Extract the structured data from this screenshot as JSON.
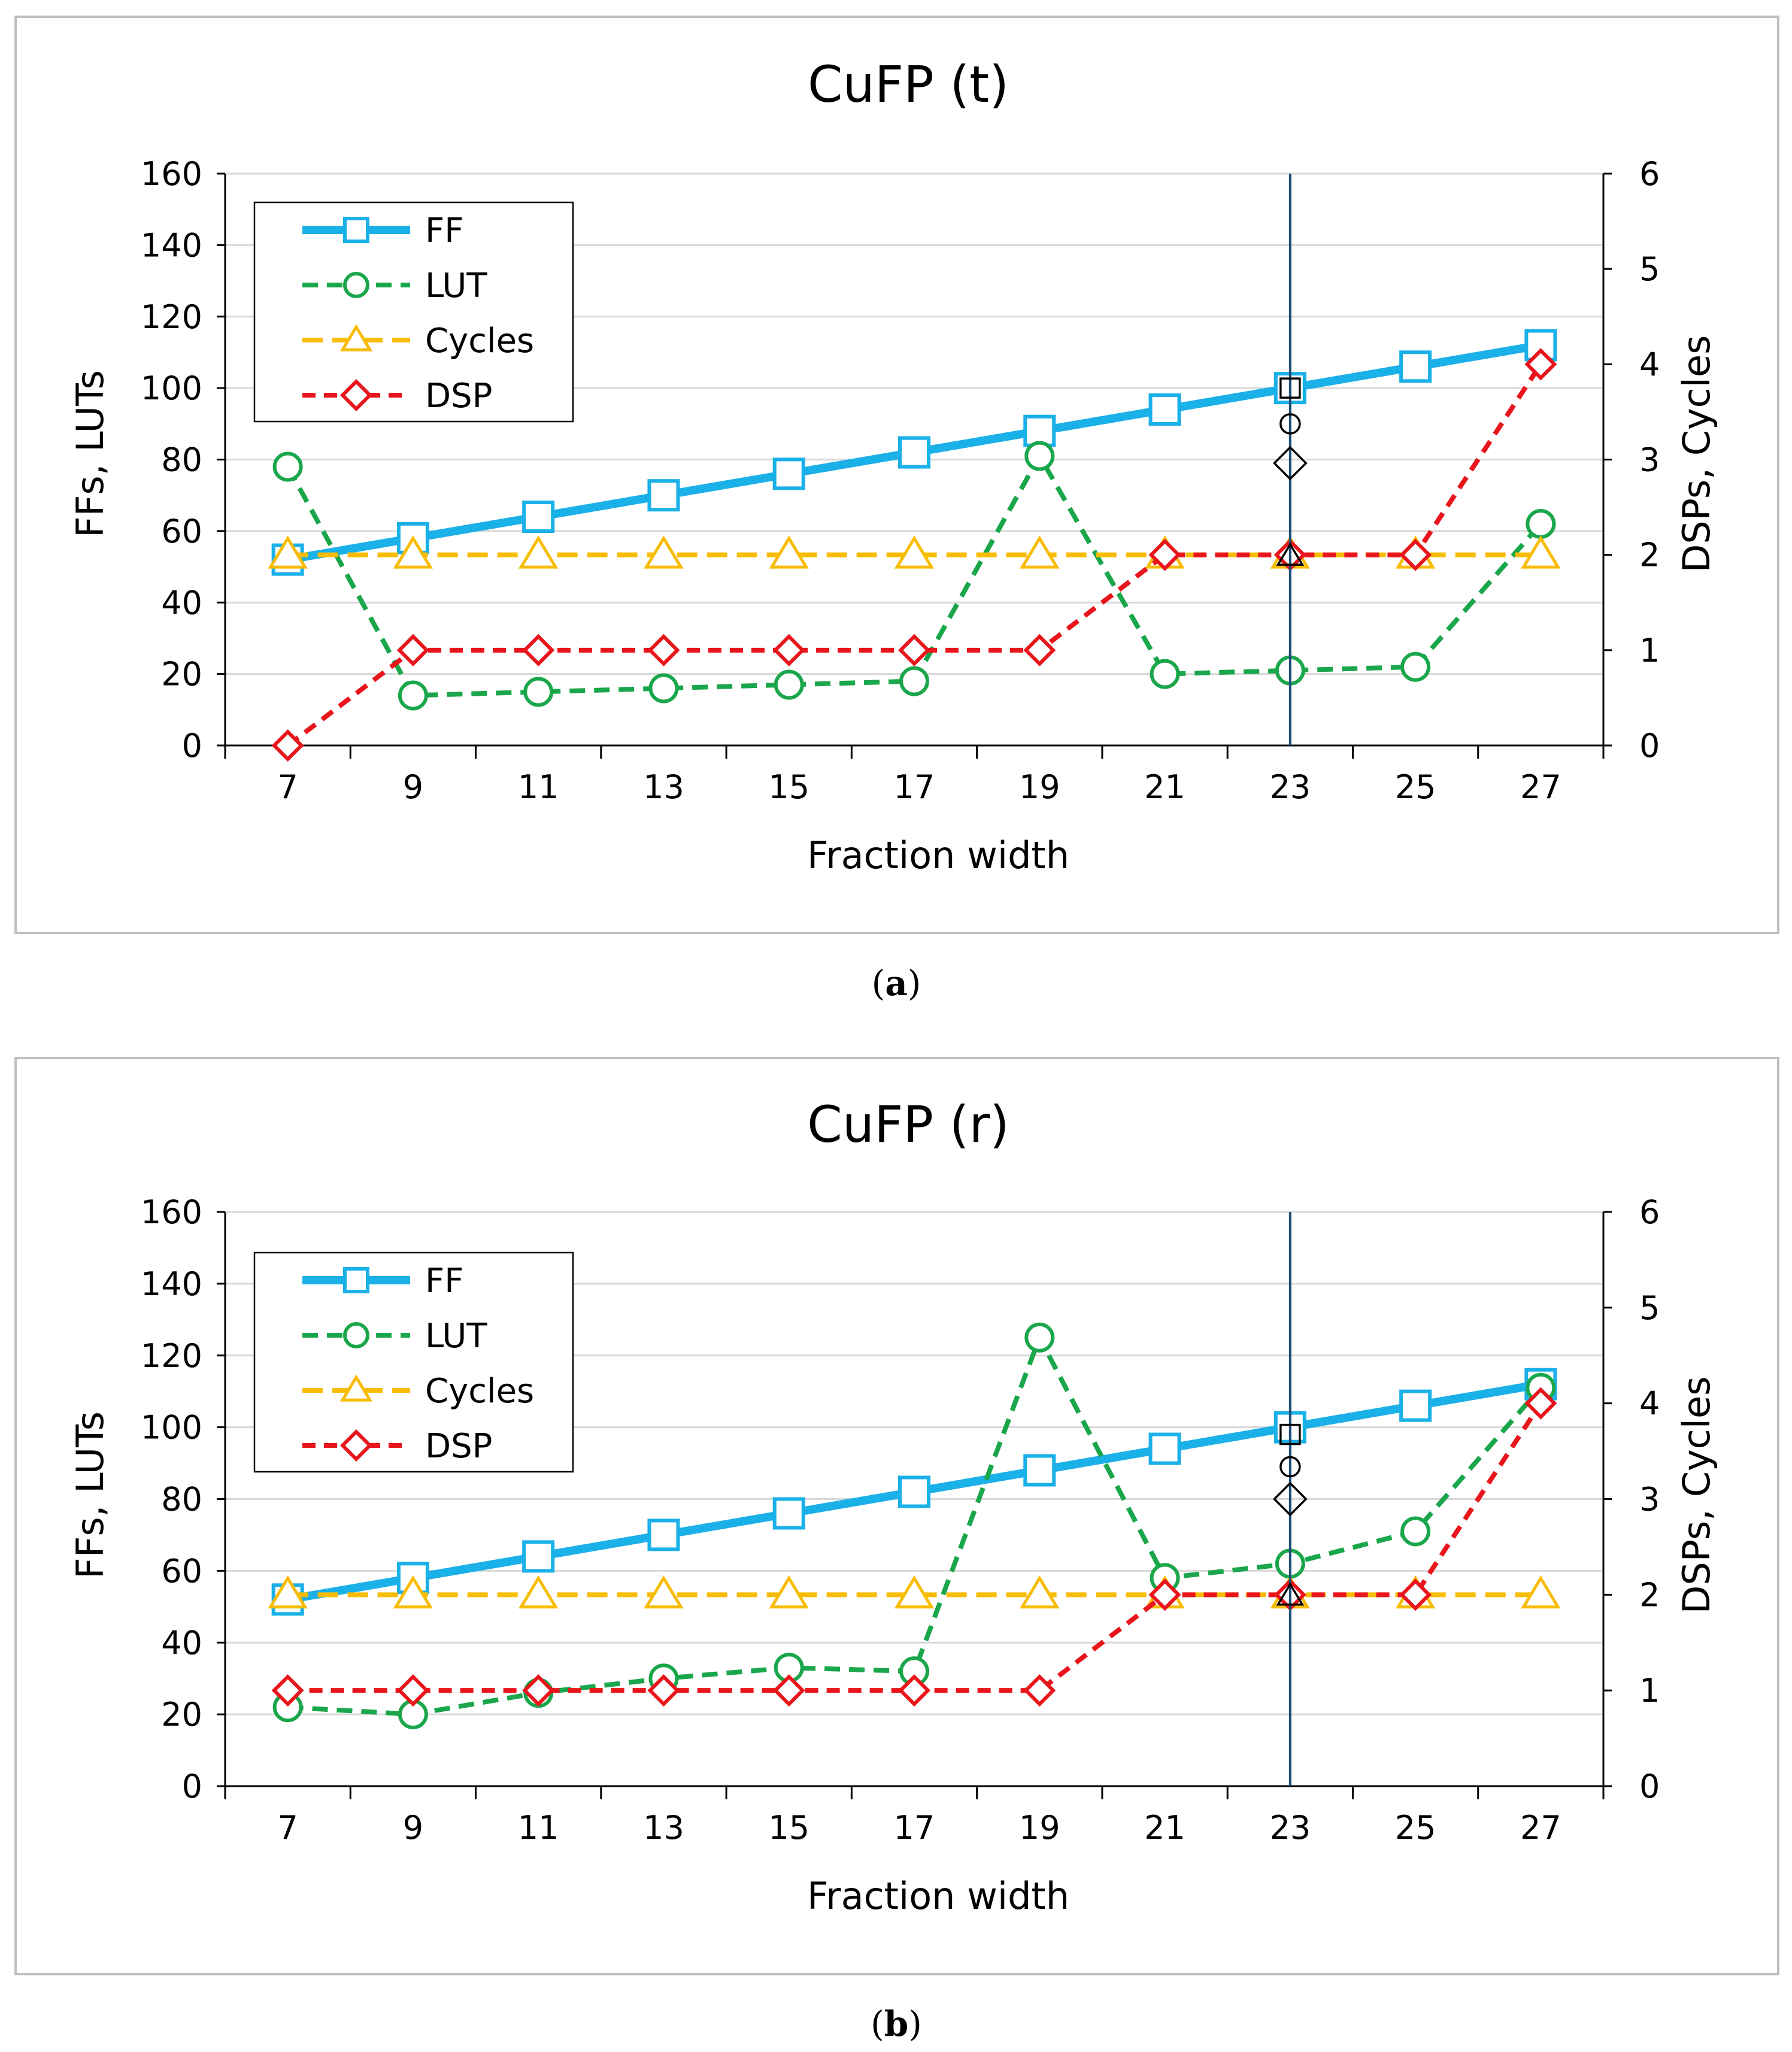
{
  "colors": {
    "FF": "#1ab0e8",
    "LUT": "#1aa64a",
    "Cycles": "#f8bc05",
    "DSP": "#e8161c",
    "marker": "#000000",
    "vline": "#1f4e79"
  },
  "chart_data": [
    {
      "type": "line",
      "title": "CuFP (t)",
      "caption_open": "(",
      "caption_letter": "a",
      "caption_close": ")",
      "xlabel": "Fraction width",
      "ylabel": "FFs, LUTs",
      "y2label": "DSPs, Cycles",
      "x": [
        7,
        9,
        11,
        13,
        15,
        17,
        19,
        21,
        23,
        25,
        27
      ],
      "ylim": [
        0,
        160
      ],
      "y2lim": [
        0,
        6
      ],
      "yticks": [
        "0",
        "20",
        "40",
        "60",
        "80",
        "100",
        "120",
        "140",
        "160"
      ],
      "y2ticks": [
        "0",
        "1",
        "2",
        "3",
        "4",
        "5",
        "6"
      ],
      "xticks": [
        "7",
        "9",
        "11",
        "13",
        "15",
        "17",
        "19",
        "21",
        "23",
        "25",
        "27"
      ],
      "vline_x": 23,
      "legend": [
        "FF",
        "LUT",
        "Cycles",
        "DSP"
      ],
      "series": [
        {
          "name": "FF",
          "axis": "left",
          "style": "solid",
          "marker": "square",
          "values": [
            52,
            58,
            64,
            70,
            76,
            82,
            88,
            94,
            100,
            106,
            112
          ]
        },
        {
          "name": "LUT",
          "axis": "left",
          "style": "dashed",
          "marker": "circle",
          "values": [
            78,
            14,
            15,
            16,
            17,
            18,
            81,
            20,
            21,
            22,
            62
          ]
        },
        {
          "name": "Cycles",
          "axis": "right",
          "style": "dashed",
          "marker": "triangle",
          "values": [
            2,
            2,
            2,
            2,
            2,
            2,
            2,
            2,
            2,
            2,
            2
          ]
        },
        {
          "name": "DSP",
          "axis": "right",
          "style": "dashed",
          "marker": "diamond",
          "values": [
            0,
            1,
            1,
            1,
            1,
            1,
            1,
            2,
            2,
            2,
            4
          ]
        }
      ],
      "reference_points": [
        {
          "marker": "square",
          "x": 23,
          "y": 100
        },
        {
          "marker": "circle",
          "x": 23,
          "y": 90
        },
        {
          "marker": "diamond",
          "x": 23,
          "y": 79
        },
        {
          "marker": "triangle",
          "x": 23,
          "y": 53
        }
      ]
    },
    {
      "type": "line",
      "title": "CuFP (r)",
      "caption_open": "(",
      "caption_letter": "b",
      "caption_close": ")",
      "xlabel": "Fraction width",
      "ylabel": "FFs, LUTs",
      "y2label": "DSPs, Cycles",
      "x": [
        7,
        9,
        11,
        13,
        15,
        17,
        19,
        21,
        23,
        25,
        27
      ],
      "ylim": [
        0,
        160
      ],
      "y2lim": [
        0,
        6
      ],
      "yticks": [
        "0",
        "20",
        "40",
        "60",
        "80",
        "100",
        "120",
        "140",
        "160"
      ],
      "y2ticks": [
        "0",
        "1",
        "2",
        "3",
        "4",
        "5",
        "6"
      ],
      "xticks": [
        "7",
        "9",
        "11",
        "13",
        "15",
        "17",
        "19",
        "21",
        "23",
        "25",
        "27"
      ],
      "vline_x": 23,
      "legend": [
        "FF",
        "LUT",
        "Cycles",
        "DSP"
      ],
      "series": [
        {
          "name": "FF",
          "axis": "left",
          "style": "solid",
          "marker": "square",
          "values": [
            52,
            58,
            64,
            70,
            76,
            82,
            88,
            94,
            100,
            106,
            112
          ]
        },
        {
          "name": "LUT",
          "axis": "left",
          "style": "dashed",
          "marker": "circle",
          "values": [
            22,
            20,
            26,
            30,
            33,
            32,
            125,
            58,
            62,
            71,
            111
          ]
        },
        {
          "name": "Cycles",
          "axis": "right",
          "style": "dashed",
          "marker": "triangle",
          "values": [
            2,
            2,
            2,
            2,
            2,
            2,
            2,
            2,
            2,
            2,
            2
          ]
        },
        {
          "name": "DSP",
          "axis": "right",
          "style": "dashed",
          "marker": "diamond",
          "values": [
            1,
            1,
            1,
            1,
            1,
            1,
            1,
            2,
            2,
            2,
            4
          ]
        }
      ],
      "reference_points": [
        {
          "marker": "square",
          "x": 23,
          "y": 98
        },
        {
          "marker": "circle",
          "x": 23,
          "y": 89
        },
        {
          "marker": "diamond",
          "x": 23,
          "y": 80
        },
        {
          "marker": "triangle",
          "x": 23,
          "y": 53
        }
      ]
    }
  ]
}
